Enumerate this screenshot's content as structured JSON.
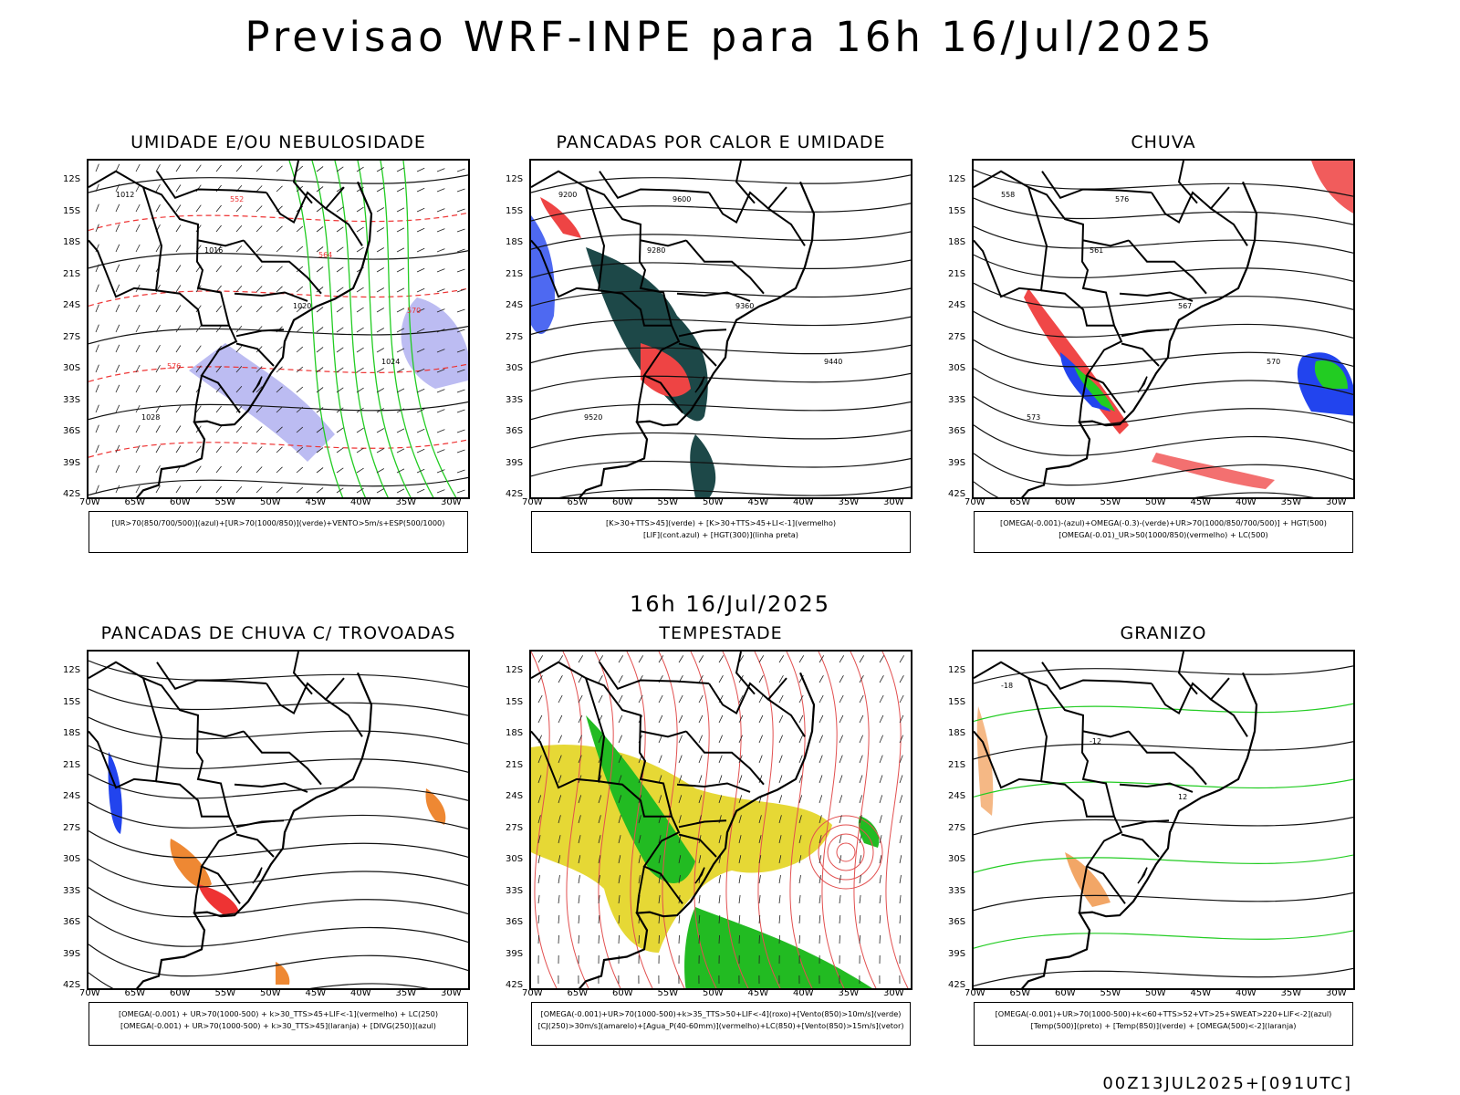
{
  "title": "Previsao WRF-INPE  para 16h 16/Jul/2025",
  "mid_label": "16h 16/Jul/2025",
  "footer": "00Z13JUL2025+[091UTC]",
  "lat_labels": [
    "12S",
    "15S",
    "18S",
    "21S",
    "24S",
    "27S",
    "30S",
    "33S",
    "36S",
    "39S",
    "42S"
  ],
  "lon_labels": [
    "70W",
    "65W",
    "60W",
    "55W",
    "50W",
    "45W",
    "40W",
    "35W",
    "30W"
  ],
  "panels": [
    {
      "title": "UMIDADE E/OU NEBULOSIDADE",
      "legend": [
        "[UR>70(850/700/500)](azul)+[UR>70(1000/850)](verde)+VENTO>5m/s+ESP(500/1000)"
      ],
      "contour_labels": [
        "1012",
        "1016",
        "1020",
        "1024",
        "1028",
        "552",
        "564",
        "570",
        "576"
      ],
      "colors": {
        "humid_mid": "#b0b0f0",
        "humid_low": "#22cc22",
        "thickness": "#ee3333"
      }
    },
    {
      "title": "PANCADAS POR CALOR E UMIDADE",
      "legend": [
        "[K>30+TTS>45](verde) + [K>30+TTS>45+LI<-1](vermelho)",
        "[LIF](cont.azul) + [HGT(300)](linha preta)"
      ],
      "contour_labels": [
        "9200",
        "9280",
        "9360",
        "9440",
        "9520",
        "9600"
      ],
      "colors": {
        "verde": "#1d4848",
        "vermelho": "#ee4444",
        "azul": "#2244ee"
      }
    },
    {
      "title": "CHUVA",
      "legend": [
        "[OMEGA(-0.001)-(azul)+OMEGA(-0.3)-(verde)+UR>70(1000/850/700/500)] + HGT(500)",
        "[OMEGA(-0.01)_UR>50(1000/850)(vermelho) + LC(500)"
      ],
      "contour_labels": [
        "558",
        "561",
        "567",
        "570",
        "573",
        "576"
      ],
      "colors": {
        "azul": "#2244ee",
        "verde": "#22cc22",
        "vermelho": "#ee3333"
      }
    },
    {
      "title": "PANCADAS DE CHUVA C/ TROVOADAS",
      "legend": [
        "[OMEGA(-0.001) + UR>70(1000-500) + k>30_TTS>45+LIF<-1](vermelho) + LC(250)",
        "[OMEGA(-0.001) + UR>70(1000-500) + k>30_TTS>45](laranja) + [DIVG(250)](azul)"
      ],
      "contour_labels": [],
      "colors": {
        "vermelho": "#ee3333",
        "laranja": "#ee8833",
        "azul": "#2244ee"
      }
    },
    {
      "title": "TEMPESTADE",
      "legend": [
        "[OMEGA(-0.001)+UR>70(1000-500)+k>35_TTS>50+LIF<-4](roxo)+[Vento(850)>10m/s](verde)",
        "[CJ(250)>30m/s](amarelo)+[Agua_P(40-60mm)](vermelho)+LC(850)+[Vento(850)>15m/s](vetor)"
      ],
      "contour_labels": [],
      "colors": {
        "amarelo": "#e6d835",
        "verde": "#22bb22",
        "vermelho": "#ee4444"
      }
    },
    {
      "title": "GRANIZO",
      "legend": [
        "[OMEGA(-0.001)+UR>70(1000-500)+k<60+TTS>52+VT>25+SWEAT>220+LIF<-2](azul)",
        "[Temp(500)](preto) + [Temp(850)](verde) + [OMEGA(500)<-2](laranja)"
      ],
      "contour_labels": [
        "-18",
        "-12",
        "12"
      ],
      "colors": {
        "verde": "#22cc22",
        "laranja": "#ee8833"
      }
    }
  ]
}
